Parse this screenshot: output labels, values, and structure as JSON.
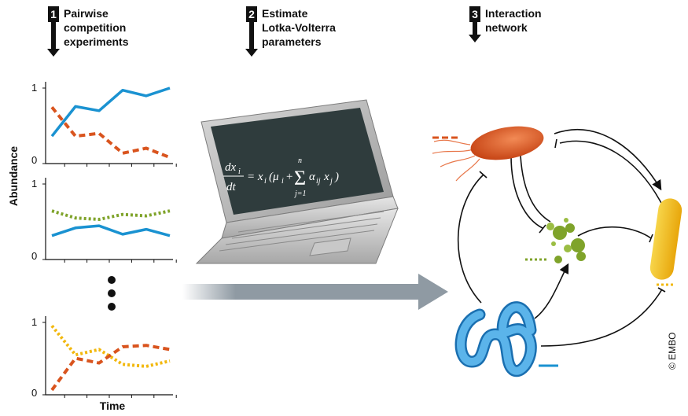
{
  "steps": [
    {
      "number": "1",
      "title": "Pairwise\ncompetition\nexperiments"
    },
    {
      "number": "2",
      "title": "Estimate\nLotka-Volterra\nparameters"
    },
    {
      "number": "3",
      "title": "Interaction\nnetwork"
    }
  ],
  "y_axis_label": "Abundance",
  "x_axis_label": "Time",
  "tick_top": "1",
  "tick_bottom": "0",
  "equation": "dx_i/dt = x_i(μ_i + Σ_{j=1}^{n} α_ij x_j)",
  "credit": "© EMBO",
  "colors": {
    "orange": "#d9541e",
    "blue": "#1a92d1",
    "green": "#7fa32a",
    "yellow": "#f2b80e",
    "arrow": "#8f9aa3"
  },
  "chart_data": [
    {
      "type": "line",
      "ylim": [
        0,
        1
      ],
      "series": [
        {
          "color": "blue",
          "style": "solid",
          "values": [
            0.32,
            0.74,
            0.68,
            0.97,
            0.89,
            1.0
          ]
        },
        {
          "color": "orange",
          "style": "dashed",
          "values": [
            0.73,
            0.32,
            0.36,
            0.08,
            0.15,
            0.02
          ]
        }
      ]
    },
    {
      "type": "line",
      "ylim": [
        0,
        1
      ],
      "series": [
        {
          "color": "green",
          "style": "dotted",
          "values": [
            0.62,
            0.52,
            0.5,
            0.57,
            0.55,
            0.62
          ]
        },
        {
          "color": "blue",
          "style": "solid",
          "values": [
            0.27,
            0.38,
            0.41,
            0.29,
            0.36,
            0.27
          ]
        }
      ]
    },
    {
      "type": "line",
      "ylim": [
        0,
        1
      ],
      "series": [
        {
          "color": "yellow",
          "style": "dotted",
          "values": [
            0.95,
            0.52,
            0.6,
            0.38,
            0.35,
            0.43
          ]
        },
        {
          "color": "orange",
          "style": "dashed",
          "values": [
            0.0,
            0.47,
            0.4,
            0.64,
            0.66,
            0.6
          ]
        }
      ]
    }
  ]
}
